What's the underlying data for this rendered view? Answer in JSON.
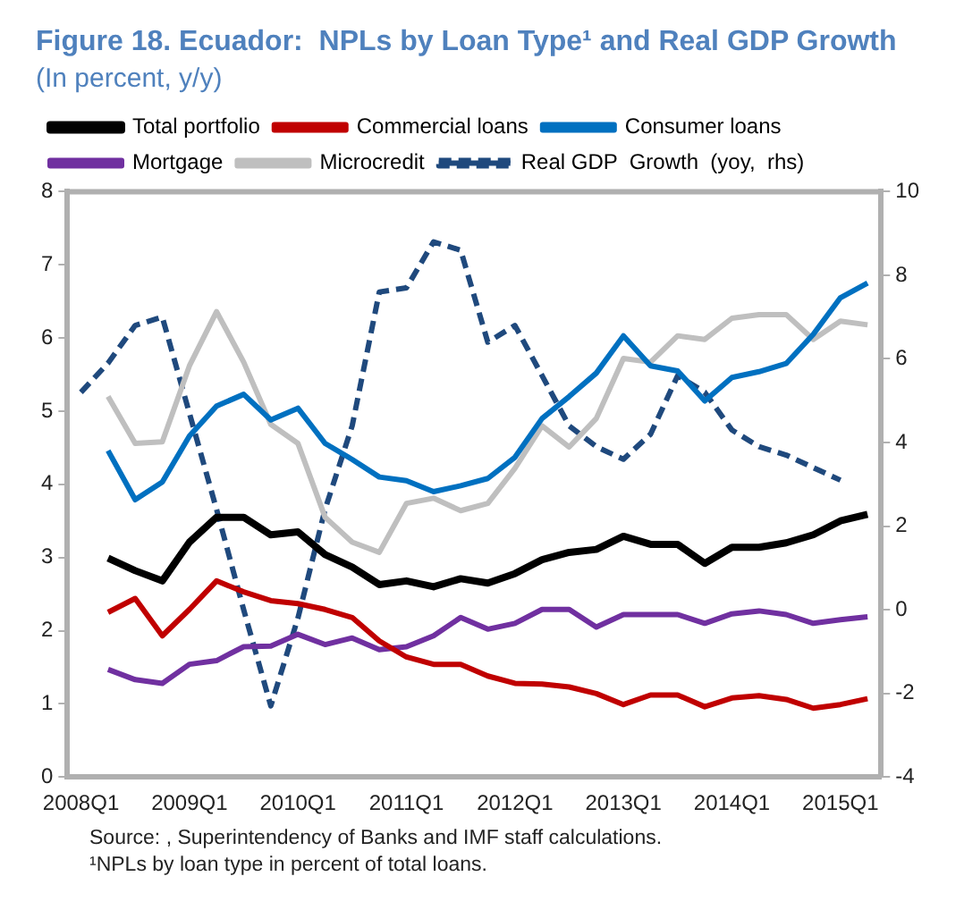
{
  "chart_data": {
    "type": "line",
    "title": "Figure 18. Ecuador:  NPLs by Loan Type¹ and Real GDP Growth",
    "subtitle": "(In percent, y/y)",
    "categories": [
      "2008Q1",
      null,
      null,
      null,
      "2009Q1",
      null,
      null,
      null,
      "2010Q1",
      null,
      null,
      null,
      "2011Q1",
      null,
      null,
      null,
      "2012Q1",
      null,
      null,
      null,
      "2013Q1",
      null,
      null,
      null,
      "2014Q1",
      null,
      null,
      null,
      "2015Q1",
      null
    ],
    "series": [
      {
        "name": "Total portfolio",
        "color": "#000000",
        "values": [
          null,
          2.99,
          2.82,
          2.68,
          3.21,
          3.55,
          3.55,
          3.31,
          3.35,
          3.04,
          2.87,
          2.63,
          2.68,
          2.6,
          2.71,
          2.65,
          2.78,
          2.97,
          3.07,
          3.11,
          3.29,
          3.18,
          3.18,
          2.92,
          3.14,
          3.14,
          3.2,
          3.31,
          3.5,
          3.59
        ]
      },
      {
        "name": "Commercial loans",
        "color": "#c00000",
        "values": [
          null,
          2.25,
          2.44,
          1.93,
          2.29,
          2.68,
          2.53,
          2.41,
          2.37,
          2.29,
          2.18,
          1.86,
          1.64,
          1.54,
          1.54,
          1.38,
          1.28,
          1.27,
          1.23,
          1.14,
          0.99,
          1.12,
          1.12,
          0.96,
          1.08,
          1.11,
          1.06,
          0.94,
          0.99,
          1.07
        ]
      },
      {
        "name": "Consumer loans",
        "color": "#0070c0",
        "values": [
          null,
          4.46,
          3.79,
          4.03,
          4.66,
          5.07,
          5.23,
          4.88,
          5.04,
          4.56,
          4.34,
          4.1,
          4.05,
          3.9,
          3.98,
          4.08,
          4.37,
          4.9,
          5.2,
          5.52,
          6.03,
          5.62,
          5.55,
          5.14,
          5.46,
          5.54,
          5.65,
          6.05,
          6.55,
          6.75
        ]
      },
      {
        "name": "Mortgage",
        "color": "#7030a0",
        "values": [
          null,
          1.47,
          1.33,
          1.28,
          1.54,
          1.59,
          1.78,
          1.79,
          1.95,
          1.81,
          1.9,
          1.74,
          1.78,
          1.93,
          2.18,
          2.02,
          2.1,
          2.29,
          2.29,
          2.05,
          2.22,
          2.22,
          2.22,
          2.1,
          2.23,
          2.27,
          2.22,
          2.1,
          2.15,
          2.19
        ]
      },
      {
        "name": "Microcredit",
        "color": "#bfbfbf",
        "values": [
          null,
          5.2,
          4.56,
          4.58,
          5.62,
          6.36,
          5.67,
          4.82,
          4.56,
          3.55,
          3.21,
          3.07,
          3.74,
          3.81,
          3.64,
          3.74,
          4.22,
          4.8,
          4.51,
          4.9,
          5.72,
          5.67,
          6.03,
          5.98,
          6.27,
          6.32,
          6.32,
          5.98,
          6.23,
          6.18
        ]
      },
      {
        "name": "Real GDP  Growth  (yoy,  rhs)",
        "color": "#1f497d",
        "axis": "y2",
        "line_style": "dashed",
        "values": [
          5.2,
          5.9,
          6.8,
          7.0,
          4.7,
          2.4,
          0.0,
          -2.3,
          -0.2,
          2.4,
          4.4,
          7.6,
          7.7,
          8.8,
          8.6,
          6.4,
          6.8,
          5.6,
          4.4,
          3.9,
          3.6,
          4.2,
          5.6,
          5.2,
          4.3,
          3.9,
          3.7,
          3.4,
          3.1,
          null
        ]
      }
    ],
    "ylim": [
      0,
      8
    ],
    "yticks": [
      0,
      1,
      2,
      3,
      4,
      5,
      6,
      7,
      8
    ],
    "y2lim": [
      -4,
      10
    ],
    "y2ticks": [
      -4,
      -2,
      0,
      2,
      4,
      6,
      8,
      10
    ],
    "grid": false,
    "legend": "top",
    "marker": "none",
    "annotations": [
      "Source: , Superintendency of Banks and IMF staff calculations.",
      "¹NPLs by loan type in percent of total loans."
    ]
  }
}
